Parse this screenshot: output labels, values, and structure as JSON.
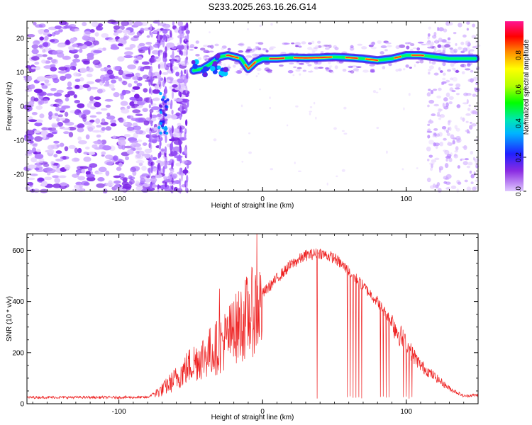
{
  "title": "S233.2025.263.16.26.G14",
  "chart_data": [
    {
      "type": "heatmap",
      "xlabel": "Height of straight line (km)",
      "ylabel": "Frequency (Hz)",
      "xlim": [
        -164,
        150
      ],
      "ylim": [
        -25,
        25
      ],
      "xticks": [
        -100,
        0,
        100
      ],
      "xtick_labels": [
        "-100",
        "0",
        "100"
      ],
      "yticks": [
        -20,
        -10,
        0,
        10,
        20
      ],
      "ytick_labels": [
        "-20",
        "-10",
        "0",
        "10",
        "20"
      ],
      "colorbar": {
        "label": "Normalized spectral amplitude",
        "range": [
          0,
          1
        ],
        "ticks": [
          0,
          0.2,
          0.4,
          0.6,
          0.8
        ],
        "tick_labels": [
          "0.0",
          "0.2",
          "0.4",
          "0.6",
          "0.8"
        ]
      },
      "ridge_points": [
        {
          "x": -48,
          "y": 10.5
        },
        {
          "x": -42,
          "y": 11
        },
        {
          "x": -36,
          "y": 12.5
        },
        {
          "x": -30,
          "y": 14.5
        },
        {
          "x": -24,
          "y": 15
        },
        {
          "x": -15,
          "y": 14
        },
        {
          "x": -10,
          "y": 11
        },
        {
          "x": -5,
          "y": 13
        },
        {
          "x": 0,
          "y": 14
        },
        {
          "x": 10,
          "y": 14
        },
        {
          "x": 20,
          "y": 14.3
        },
        {
          "x": 30,
          "y": 14.2
        },
        {
          "x": 40,
          "y": 14.3
        },
        {
          "x": 50,
          "y": 14.5
        },
        {
          "x": 60,
          "y": 14.3
        },
        {
          "x": 70,
          "y": 14
        },
        {
          "x": 80,
          "y": 13.5
        },
        {
          "x": 90,
          "y": 14
        },
        {
          "x": 100,
          "y": 15
        },
        {
          "x": 110,
          "y": 15
        },
        {
          "x": 120,
          "y": 14.5
        },
        {
          "x": 130,
          "y": 14
        },
        {
          "x": 140,
          "y": 14
        },
        {
          "x": 148,
          "y": 14
        }
      ]
    },
    {
      "type": "line",
      "xlabel": "Height of straight line (km)",
      "ylabel": "SNR (10 * v/v)",
      "xlim": [
        -164,
        150
      ],
      "ylim": [
        0,
        665
      ],
      "xticks": [
        -100,
        0,
        100
      ],
      "xtick_labels": [
        "-100",
        "0",
        "100"
      ],
      "yticks": [
        0,
        200,
        400,
        600
      ],
      "ytick_labels": [
        "0",
        "200",
        "400",
        "600"
      ],
      "series": [
        {
          "name": "SNR",
          "color": "#ee2222",
          "envelope": [
            {
              "x": -164,
              "y": 25
            },
            {
              "x": -120,
              "y": 25
            },
            {
              "x": -80,
              "y": 25
            },
            {
              "x": -70,
              "y": 60
            },
            {
              "x": -60,
              "y": 110
            },
            {
              "x": -50,
              "y": 170
            },
            {
              "x": -40,
              "y": 210
            },
            {
              "x": -30,
              "y": 250
            },
            {
              "x": -20,
              "y": 310
            },
            {
              "x": -10,
              "y": 380
            },
            {
              "x": 0,
              "y": 430
            },
            {
              "x": 10,
              "y": 490
            },
            {
              "x": 20,
              "y": 545
            },
            {
              "x": 30,
              "y": 580
            },
            {
              "x": 40,
              "y": 590
            },
            {
              "x": 50,
              "y": 570
            },
            {
              "x": 60,
              "y": 520
            },
            {
              "x": 70,
              "y": 460
            },
            {
              "x": 80,
              "y": 400
            },
            {
              "x": 90,
              "y": 320
            },
            {
              "x": 100,
              "y": 230
            },
            {
              "x": 110,
              "y": 150
            },
            {
              "x": 120,
              "y": 105
            },
            {
              "x": 130,
              "y": 60
            },
            {
              "x": 140,
              "y": 30
            },
            {
              "x": 150,
              "y": 35
            }
          ],
          "spikes_up": [
            {
              "x": -4,
              "y": 665
            },
            {
              "x": -30,
              "y": 450
            },
            {
              "x": -20,
              "y": 400
            }
          ],
          "dropouts": [
            38,
            59,
            61,
            63,
            65,
            67,
            69,
            82,
            84,
            86,
            88,
            98,
            100,
            102,
            104
          ]
        }
      ]
    }
  ]
}
